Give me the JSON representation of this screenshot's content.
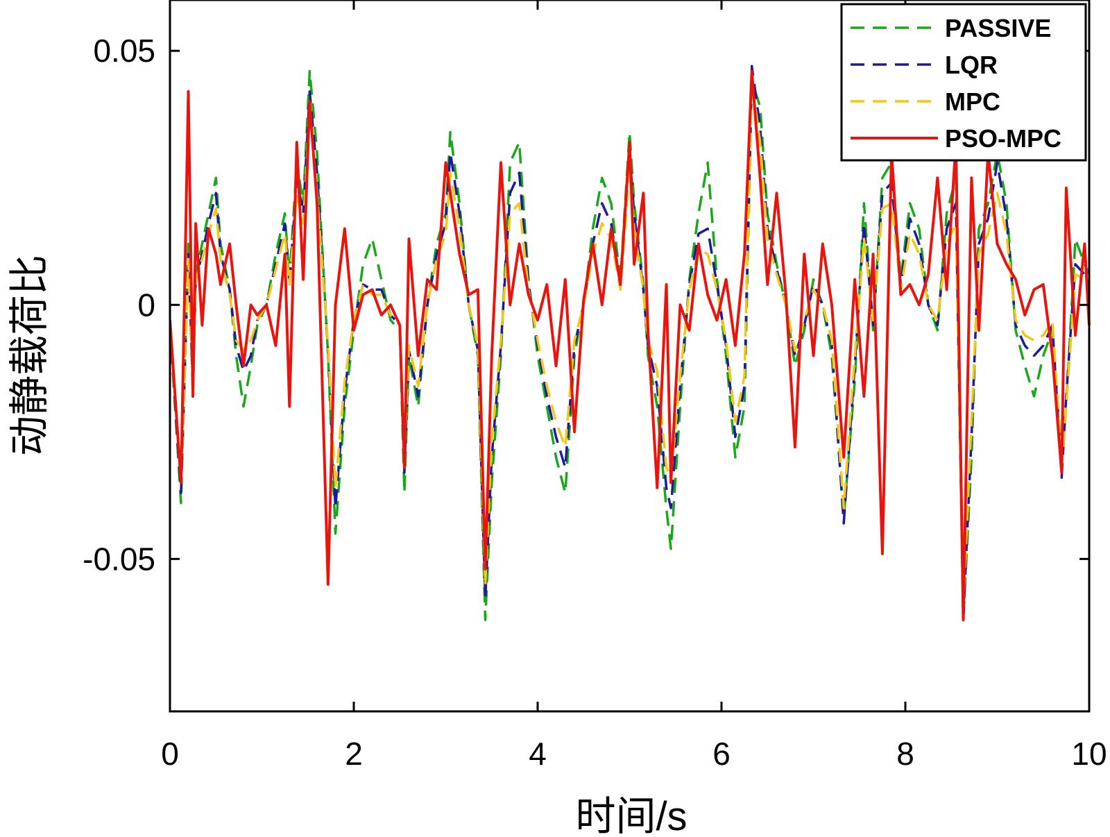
{
  "chart_data": {
    "type": "line",
    "title": "",
    "xlabel": "时间/s",
    "ylabel": "动静载荷比",
    "xlim": [
      0,
      10
    ],
    "ylim": [
      -0.08,
      0.06
    ],
    "xticks": [
      0,
      2,
      4,
      6,
      8,
      10
    ],
    "xtick_labels": [
      "0",
      "2",
      "4",
      "6",
      "8",
      "10"
    ],
    "yticks": [
      -0.05,
      0,
      0.05
    ],
    "ytick_labels": [
      "-0.05",
      "0",
      "0.05"
    ],
    "grid": false,
    "legend_position": "top-right",
    "x": [
      0,
      0.12,
      0.2,
      0.25,
      0.28,
      0.35,
      0.42,
      0.5,
      0.55,
      0.65,
      0.72,
      0.8,
      0.88,
      0.95,
      1.05,
      1.15,
      1.25,
      1.3,
      1.38,
      1.45,
      1.52,
      1.6,
      1.72,
      1.8,
      1.9,
      2.0,
      2.1,
      2.2,
      2.3,
      2.4,
      2.5,
      2.55,
      2.6,
      2.7,
      2.8,
      2.9,
      3.0,
      3.05,
      3.15,
      3.25,
      3.35,
      3.43,
      3.5,
      3.6,
      3.7,
      3.8,
      3.9,
      4.0,
      4.1,
      4.2,
      4.3,
      4.4,
      4.5,
      4.6,
      4.7,
      4.8,
      4.9,
      5.0,
      5.05,
      5.15,
      5.2,
      5.3,
      5.4,
      5.45,
      5.55,
      5.65,
      5.75,
      5.85,
      5.95,
      6.05,
      6.15,
      6.25,
      6.33,
      6.42,
      6.5,
      6.6,
      6.7,
      6.8,
      6.9,
      7.0,
      7.1,
      7.2,
      7.33,
      7.45,
      7.55,
      7.65,
      7.75,
      7.85,
      7.95,
      8.05,
      8.15,
      8.25,
      8.35,
      8.45,
      8.55,
      8.63,
      8.72,
      8.8,
      8.9,
      9.0,
      9.1,
      9.2,
      9.3,
      9.4,
      9.5,
      9.6,
      9.7,
      9.75,
      9.85,
      9.95,
      10.0
    ],
    "series": [
      {
        "name": "PASSIVE",
        "color": "#1aa81a",
        "style": "dashed",
        "values": [
          -0.004,
          -0.039,
          0.012,
          -0.018,
          0.006,
          0.012,
          0.018,
          0.025,
          0.012,
          0.003,
          -0.01,
          -0.02,
          -0.012,
          -0.004,
          0.0,
          0.01,
          0.018,
          0.005,
          0.028,
          0.02,
          0.046,
          0.03,
          -0.01,
          -0.045,
          -0.02,
          -0.005,
          0.008,
          0.013,
          0.005,
          -0.003,
          -0.005,
          -0.037,
          -0.01,
          -0.02,
          0.0,
          0.012,
          0.018,
          0.034,
          0.02,
          0.0,
          -0.01,
          -0.062,
          -0.035,
          -0.01,
          0.028,
          0.032,
          0.005,
          -0.01,
          -0.02,
          -0.03,
          -0.037,
          -0.01,
          0.0,
          0.015,
          0.025,
          0.02,
          0.005,
          0.034,
          0.02,
          0.004,
          -0.01,
          -0.02,
          -0.04,
          -0.048,
          -0.02,
          0.005,
          0.018,
          0.028,
          0.005,
          -0.01,
          -0.03,
          -0.02,
          0.044,
          0.039,
          0.018,
          0.008,
          0.0,
          -0.012,
          -0.005,
          0.005,
          0.0,
          -0.01,
          -0.042,
          -0.015,
          0.02,
          -0.005,
          0.025,
          0.028,
          0.005,
          0.02,
          0.015,
          0.0,
          -0.005,
          0.018,
          0.025,
          -0.062,
          -0.03,
          0.015,
          0.02,
          0.03,
          0.02,
          -0.005,
          -0.012,
          -0.018,
          -0.01,
          -0.005,
          -0.03,
          -0.02,
          0.013,
          0.008,
          0.006
        ]
      },
      {
        "name": "LQR",
        "color": "#1c1c9a",
        "style": "dashed",
        "values": [
          -0.004,
          -0.037,
          0.01,
          -0.016,
          0.005,
          0.01,
          0.016,
          0.022,
          0.01,
          0.003,
          -0.008,
          -0.013,
          -0.01,
          -0.003,
          0.0,
          0.008,
          0.016,
          0.004,
          0.025,
          0.018,
          0.042,
          0.026,
          -0.009,
          -0.04,
          -0.017,
          -0.003,
          0.004,
          0.003,
          0.003,
          -0.002,
          -0.004,
          -0.033,
          -0.009,
          -0.018,
          0.0,
          0.01,
          0.016,
          0.03,
          0.018,
          0.0,
          -0.009,
          -0.058,
          -0.03,
          -0.008,
          0.022,
          0.026,
          0.004,
          -0.008,
          -0.018,
          -0.026,
          -0.032,
          -0.008,
          0.0,
          0.012,
          0.02,
          0.016,
          0.004,
          0.03,
          0.018,
          0.003,
          -0.008,
          -0.016,
          -0.036,
          -0.04,
          -0.016,
          0.004,
          0.014,
          0.015,
          0.004,
          -0.008,
          -0.026,
          -0.016,
          0.047,
          0.035,
          0.015,
          0.007,
          0.0,
          -0.01,
          -0.004,
          0.004,
          0.0,
          -0.008,
          -0.043,
          -0.012,
          0.016,
          -0.004,
          0.022,
          0.024,
          0.004,
          0.017,
          0.012,
          0.0,
          -0.004,
          0.015,
          0.02,
          -0.062,
          -0.026,
          0.012,
          0.017,
          0.028,
          0.017,
          -0.004,
          -0.008,
          -0.01,
          -0.008,
          -0.004,
          -0.034,
          -0.018,
          0.008,
          0.006,
          0.004
        ]
      },
      {
        "name": "MPC",
        "color": "#f5c518",
        "style": "dashed",
        "values": [
          -0.004,
          -0.035,
          0.009,
          -0.014,
          0.005,
          0.009,
          0.014,
          0.019,
          0.009,
          0.002,
          -0.007,
          -0.009,
          -0.007,
          -0.003,
          0.0,
          0.007,
          0.014,
          0.004,
          0.022,
          0.016,
          0.038,
          0.022,
          -0.008,
          -0.036,
          -0.015,
          -0.003,
          0.004,
          0.002,
          0.002,
          -0.002,
          -0.004,
          -0.03,
          -0.008,
          -0.016,
          0.0,
          0.009,
          0.014,
          0.026,
          0.015,
          0.0,
          -0.008,
          -0.055,
          -0.027,
          -0.007,
          0.018,
          0.02,
          0.003,
          -0.007,
          -0.016,
          -0.023,
          -0.028,
          -0.007,
          0.0,
          0.01,
          0.016,
          0.013,
          0.003,
          0.027,
          0.015,
          0.003,
          -0.007,
          -0.013,
          -0.032,
          -0.034,
          -0.014,
          0.003,
          0.011,
          0.01,
          0.003,
          -0.007,
          -0.023,
          -0.014,
          0.044,
          0.032,
          0.013,
          0.006,
          0.0,
          -0.009,
          -0.003,
          0.003,
          0.0,
          -0.007,
          -0.04,
          -0.01,
          0.013,
          -0.003,
          0.019,
          0.02,
          0.003,
          0.014,
          0.01,
          0.0,
          -0.003,
          0.012,
          0.016,
          -0.06,
          -0.023,
          0.01,
          0.014,
          0.022,
          0.014,
          -0.003,
          -0.006,
          -0.007,
          -0.006,
          -0.003,
          -0.032,
          -0.02,
          0.006,
          0.005,
          0.003
        ]
      },
      {
        "name": "PSO-MPC",
        "color": "#e8150f",
        "style": "solid",
        "values": [
          -0.003,
          -0.035,
          0.042,
          -0.018,
          0.016,
          -0.004,
          0.015,
          0.01,
          0.004,
          0.012,
          0.0,
          -0.012,
          0.0,
          -0.002,
          0.0,
          -0.008,
          0.01,
          -0.02,
          0.032,
          0.005,
          0.04,
          0.02,
          -0.055,
          0.0,
          0.015,
          -0.005,
          0.002,
          0.003,
          -0.002,
          0.0,
          -0.004,
          -0.032,
          0.013,
          -0.01,
          0.005,
          0.003,
          0.028,
          0.022,
          0.01,
          0.002,
          0.003,
          -0.052,
          -0.01,
          0.028,
          0.0,
          0.012,
          0.002,
          -0.003,
          0.004,
          -0.012,
          0.005,
          -0.025,
          0.001,
          0.012,
          0.0,
          0.015,
          0.004,
          0.032,
          0.008,
          0.022,
          -0.005,
          -0.036,
          0.004,
          -0.035,
          0.0,
          -0.005,
          0.012,
          0.002,
          -0.003,
          0.005,
          -0.008,
          0.01,
          0.046,
          0.025,
          0.004,
          0.022,
          0.002,
          -0.028,
          0.01,
          -0.01,
          0.012,
          0.0,
          -0.03,
          0.005,
          -0.018,
          0.01,
          -0.049,
          0.03,
          0.002,
          0.004,
          0.0,
          0.006,
          0.025,
          0.003,
          0.032,
          -0.062,
          0.025,
          -0.005,
          0.03,
          0.012,
          0.008,
          0.005,
          -0.002,
          0.003,
          0.004,
          -0.01,
          -0.033,
          0.023,
          -0.006,
          0.012,
          -0.004
        ]
      }
    ]
  }
}
